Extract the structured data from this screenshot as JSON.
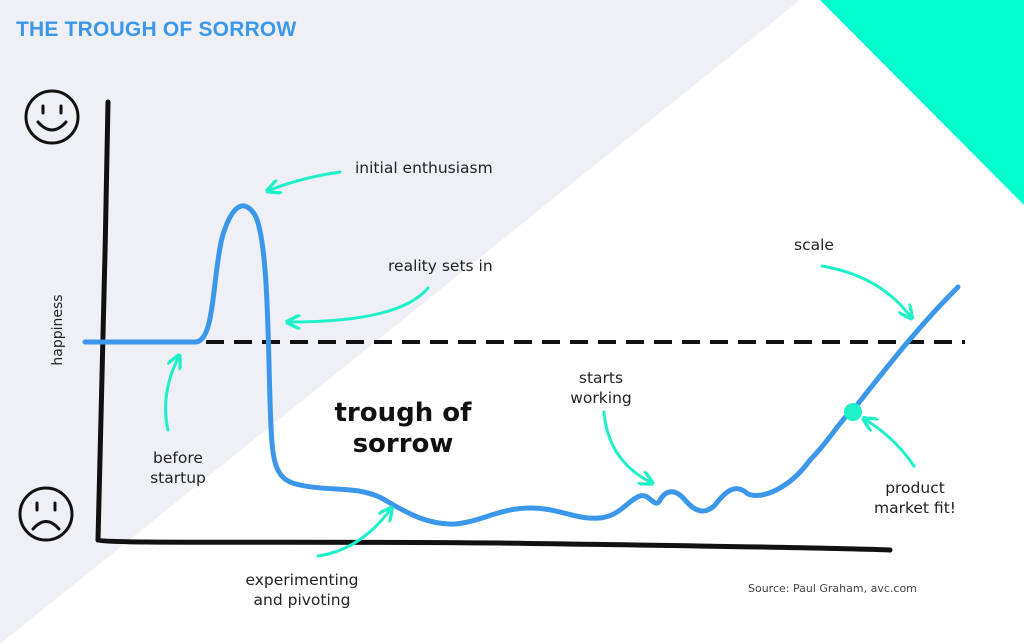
{
  "chart_data": {
    "type": "line",
    "title": "THE TROUGH OF SORROW",
    "xlabel": "",
    "ylabel": "happiness",
    "baseline_style": "dashed",
    "icons": {
      "top": "happy-face-icon",
      "bottom": "sad-face-icon"
    },
    "annotations": [
      {
        "id": "initial-enthusiasm",
        "text": "initial enthusiasm"
      },
      {
        "id": "reality-sets-in",
        "text": "reality sets in"
      },
      {
        "id": "before-startup",
        "text": "before\nstartup"
      },
      {
        "id": "trough",
        "text": "trough of\nsorrow"
      },
      {
        "id": "experimenting",
        "text": "experimenting\nand pivoting"
      },
      {
        "id": "starts-working",
        "text": "starts\nworking"
      },
      {
        "id": "scale",
        "text": "scale"
      },
      {
        "id": "product-market-fit",
        "text": "product\nmarket fit!"
      }
    ],
    "source": "Source: Paul Graham, avc.com"
  },
  "colors": {
    "title": "#3b97ea",
    "curve": "#3b97ea",
    "arrows": "#1ef0c8",
    "corner": "#00ffcc",
    "left_triangle": "#eef0f5",
    "axis": "#111111"
  }
}
